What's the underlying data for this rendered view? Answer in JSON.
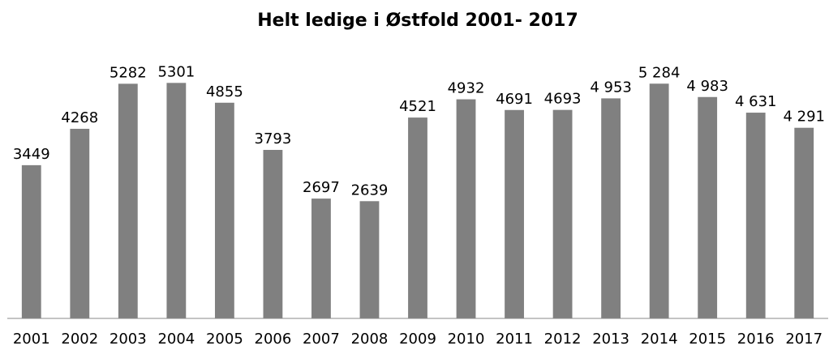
{
  "chart_data": {
    "type": "bar",
    "title": "Helt ledige i Østfold 2001- 2017",
    "categories": [
      "2001",
      "2002",
      "2003",
      "2004",
      "2005",
      "2006",
      "2007",
      "2008",
      "2009",
      "2010",
      "2011",
      "2012",
      "2013",
      "2014",
      "2015",
      "2016",
      "2017"
    ],
    "values": [
      3449,
      4268,
      5282,
      5301,
      4855,
      3793,
      2697,
      2639,
      4521,
      4932,
      4691,
      4693,
      4953,
      5284,
      4983,
      4631,
      4291
    ],
    "value_labels": [
      "3449",
      "4268",
      "5282",
      "5301",
      "4855",
      "3793",
      "2697",
      "2639",
      "4521",
      "4932",
      "4691",
      "4693",
      "4 953",
      "5 284",
      "4 983",
      "4 631",
      "4 291"
    ],
    "color": "#808080",
    "ylim": [
      0,
      6000
    ]
  }
}
